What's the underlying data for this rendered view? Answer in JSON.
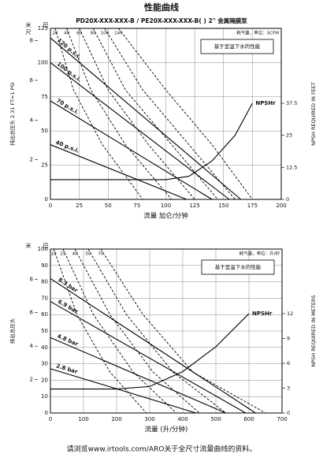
{
  "title": "性能曲线",
  "footer": "请浏览www.irtools.com/ARO关于全尺寸流量曲线的资料。",
  "chart_data": [
    {
      "type": "line",
      "title": "PD20X-XXX-XXX-B / PE20X-XXX-XXX-B( )  2\" 金属隔膜泵",
      "xlabel": "流量 加仑/分钟",
      "ylabel": "排出总压头 2.31 FT=1 PSI",
      "y2label": "NPSH REQUIRED IN FEET",
      "corner_labels": [
        "米",
        "尺"
      ],
      "y3_unit": "巴",
      "air_label": "耗气量，单位：SCFM",
      "note": "基于室温下水的性能",
      "color": "#000000",
      "grid": true,
      "xlim": [
        0,
        200
      ],
      "xticks": [
        0,
        25,
        50,
        75,
        100,
        125,
        150,
        175,
        200
      ],
      "ylim": [
        0,
        125
      ],
      "yticks": [
        0,
        25,
        50,
        75,
        100,
        125
      ],
      "y3ticks": [
        {
          "value": 29,
          "label": "2"
        },
        {
          "value": 58,
          "label": "4"
        },
        {
          "value": 87,
          "label": "6"
        },
        {
          "value": 116,
          "label": "8"
        }
      ],
      "y2lim": [
        0,
        66.7
      ],
      "y2ticks": [
        0,
        12.5,
        25,
        37.5
      ],
      "series": [
        {
          "name": "120 p.s.i.",
          "style": "solid",
          "x": [
            0,
            165
          ],
          "values": [
            118,
            0
          ]
        },
        {
          "name": "100 p.s.i.",
          "style": "solid",
          "x": [
            0,
            155
          ],
          "values": [
            100,
            0
          ]
        },
        {
          "name": "70 p.s.i.",
          "style": "solid",
          "x": [
            0,
            140
          ],
          "values": [
            72,
            0
          ]
        },
        {
          "name": "40 p.s.i.",
          "style": "solid",
          "x": [
            0,
            118
          ],
          "values": [
            40,
            0
          ]
        },
        {
          "name": "20",
          "style": "dashed",
          "x": [
            4,
            20,
            45,
            80
          ],
          "values": [
            125,
            80,
            40,
            0
          ]
        },
        {
          "name": "40",
          "style": "dashed",
          "x": [
            14,
            35,
            65,
            105
          ],
          "values": [
            125,
            80,
            40,
            0
          ]
        },
        {
          "name": "60",
          "style": "dashed",
          "x": [
            25,
            50,
            85,
            125
          ],
          "values": [
            125,
            80,
            40,
            0
          ]
        },
        {
          "name": "80",
          "style": "dashed",
          "x": [
            37,
            65,
            105,
            145
          ],
          "values": [
            125,
            80,
            40,
            0
          ]
        },
        {
          "name": "100",
          "style": "dashed",
          "x": [
            47,
            80,
            120,
            160
          ],
          "values": [
            125,
            80,
            40,
            0
          ]
        },
        {
          "name": "140",
          "style": "dashed",
          "x": [
            59,
            100,
            140,
            175
          ],
          "values": [
            125,
            80,
            40,
            0
          ]
        },
        {
          "name": "NPSHr",
          "style": "solid",
          "axis": "y2",
          "x": [
            0,
            100,
            120,
            140,
            160,
            175
          ],
          "values": [
            7.7,
            7.7,
            9,
            15,
            25,
            37.5
          ]
        }
      ]
    },
    {
      "type": "line",
      "xlabel": "流量 (升/分钟)",
      "ylabel": "排出总压头",
      "y2label": "NPSH REQUIRED IN METERS",
      "corner_labels": [
        "米"
      ],
      "y3_unit": "巴",
      "air_label": "耗气量，单位：升/秒",
      "note": "基于室温下水的性能",
      "color": "#000000",
      "grid": true,
      "xlim": [
        0,
        700
      ],
      "xticks": [
        0,
        100,
        200,
        300,
        400,
        500,
        600,
        700
      ],
      "ylim": [
        0,
        100
      ],
      "yticks": [
        0,
        10,
        20,
        30,
        40,
        50,
        60,
        70,
        80,
        90,
        100
      ],
      "y3ticks": [
        {
          "value": 20.4,
          "label": "2"
        },
        {
          "value": 40.8,
          "label": "4"
        },
        {
          "value": 61.2,
          "label": "6"
        },
        {
          "value": 81.6,
          "label": "8"
        }
      ],
      "y2lim": [
        0,
        19.8
      ],
      "y2ticks": [
        0,
        3,
        6,
        9,
        12
      ],
      "series": [
        {
          "name": "8.3 bar",
          "style": "solid",
          "x": [
            0,
            620
          ],
          "values": [
            82,
            0
          ]
        },
        {
          "name": "6.9 bar",
          "style": "solid",
          "x": [
            0,
            590
          ],
          "values": [
            68,
            0
          ]
        },
        {
          "name": "4.8 bar",
          "style": "solid",
          "x": [
            0,
            530
          ],
          "values": [
            46,
            0
          ]
        },
        {
          "name": "2.8 bar",
          "style": "solid",
          "x": [
            0,
            440
          ],
          "values": [
            27,
            0
          ]
        },
        {
          "name": "10",
          "style": "dashed",
          "x": [
            10,
            80,
            180,
            290
          ],
          "values": [
            100,
            60,
            25,
            0
          ]
        },
        {
          "name": "25",
          "style": "dashed",
          "x": [
            38,
            130,
            250,
            380
          ],
          "values": [
            100,
            60,
            25,
            0
          ]
        },
        {
          "name": "40",
          "style": "dashed",
          "x": [
            74,
            180,
            310,
            450
          ],
          "values": [
            100,
            60,
            25,
            0
          ]
        },
        {
          "name": "50",
          "style": "dashed",
          "x": [
            114,
            230,
            370,
            530
          ],
          "values": [
            100,
            60,
            25,
            0
          ]
        },
        {
          "name": "70",
          "style": "dashed",
          "x": [
            152,
            280,
            430,
            650
          ],
          "values": [
            100,
            60,
            25,
            0
          ]
        },
        {
          "name": "NPSHr",
          "style": "solid",
          "axis": "y2",
          "x": [
            0,
            200,
            300,
            400,
            500,
            600
          ],
          "values": [
            2.9,
            2.9,
            3.2,
            5,
            8,
            12
          ]
        }
      ]
    }
  ]
}
